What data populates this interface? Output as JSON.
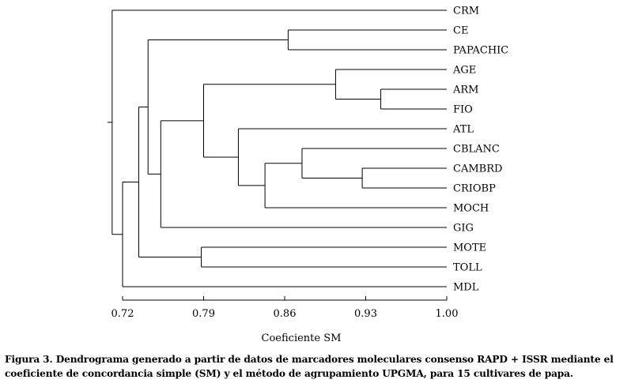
{
  "chart_data": {
    "type": "dendrogram",
    "xlabel": "Coeficiente SM",
    "xlim": [
      0.72,
      1.0
    ],
    "ticks": [
      0.72,
      0.79,
      0.86,
      0.93,
      1.0
    ],
    "tick_labels": [
      "0.72",
      "0.79",
      "0.86",
      "0.93",
      "1.00"
    ],
    "leaves": [
      "CRM",
      "CE",
      "PAPACHIC",
      "AGE",
      "ARM",
      "FIO",
      "ATL",
      "CBLANC",
      "CAMBRD",
      "CRIOBP",
      "MOCH",
      "GIG",
      "MOTE",
      "TOLL",
      "MDL"
    ],
    "merges": [
      {
        "id": "m1",
        "children": [
          "ARM",
          "FIO"
        ],
        "similarity": 0.943
      },
      {
        "id": "m2",
        "children": [
          "CAMBRD",
          "CRIOBP"
        ],
        "similarity": 0.927
      },
      {
        "id": "m3",
        "children": [
          "AGE",
          "m1"
        ],
        "similarity": 0.904
      },
      {
        "id": "m4",
        "children": [
          "CBLANC",
          "m2"
        ],
        "similarity": 0.875
      },
      {
        "id": "m5",
        "children": [
          "CE",
          "PAPACHIC"
        ],
        "similarity": 0.863
      },
      {
        "id": "m6",
        "children": [
          "m4",
          "MOCH"
        ],
        "similarity": 0.843
      },
      {
        "id": "m7",
        "children": [
          "ATL",
          "m6"
        ],
        "similarity": 0.82
      },
      {
        "id": "m8",
        "children": [
          "m3",
          "m7"
        ],
        "similarity": 0.79
      },
      {
        "id": "m9",
        "children": [
          "MOTE",
          "TOLL"
        ],
        "similarity": 0.788
      },
      {
        "id": "m10",
        "children": [
          "m8",
          "GIG"
        ],
        "similarity": 0.753
      },
      {
        "id": "m11",
        "children": [
          "m5",
          "m10"
        ],
        "similarity": 0.742
      },
      {
        "id": "m12",
        "children": [
          "m11",
          "m9"
        ],
        "similarity": 0.734
      },
      {
        "id": "m13",
        "children": [
          "m12",
          "MDL"
        ],
        "similarity": 0.72
      },
      {
        "id": "m14",
        "children": [
          "CRM",
          "m13"
        ],
        "similarity": 0.711
      }
    ]
  },
  "caption": "Figura 3. Dendrograma generado a partir de datos de marcadores moleculares consenso RAPD + ISSR mediante el coeficiente de concordancia simple (SM) y el método de agrupamiento UPGMA, para 15 cultivares de papa."
}
